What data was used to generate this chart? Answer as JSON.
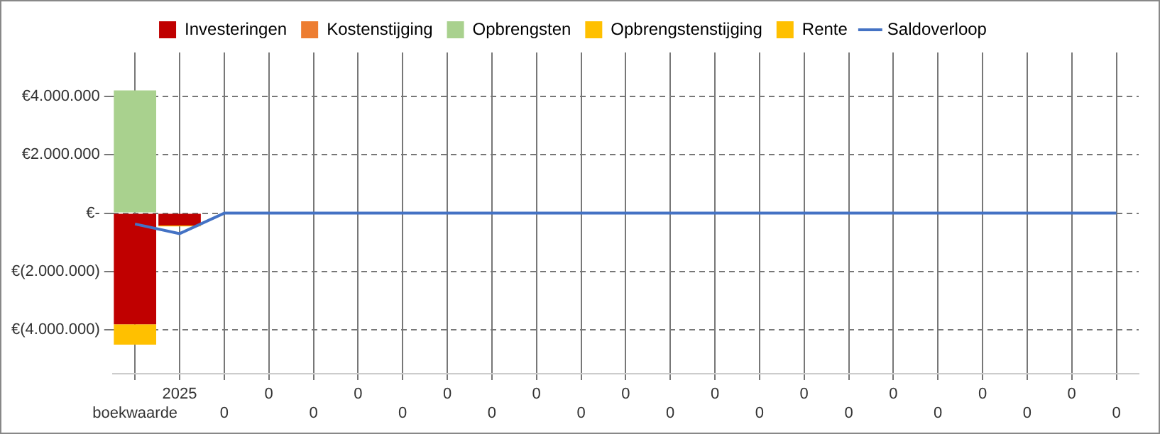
{
  "chart_data": {
    "type": "bar",
    "stacked": true,
    "grid": true,
    "legend": "top",
    "marker": "none",
    "categories": [
      "boekwaarde",
      "2025",
      "0",
      "0",
      "0",
      "0",
      "0",
      "0",
      "0",
      "0",
      "0",
      "0",
      "0",
      "0",
      "0",
      "0",
      "0",
      "0",
      "0",
      "0",
      "0",
      "0",
      "0"
    ],
    "series": [
      {
        "name": "Investeringen",
        "color": "#c00000",
        "values": [
          -3800000,
          -420000,
          0,
          0,
          0,
          0,
          0,
          0,
          0,
          0,
          0,
          0,
          0,
          0,
          0,
          0,
          0,
          0,
          0,
          0,
          0,
          0,
          0
        ]
      },
      {
        "name": "Kostenstijging",
        "color": "#ed7d31",
        "values": [
          0,
          0,
          0,
          0,
          0,
          0,
          0,
          0,
          0,
          0,
          0,
          0,
          0,
          0,
          0,
          0,
          0,
          0,
          0,
          0,
          0,
          0,
          0
        ]
      },
      {
        "name": "Opbrengsten",
        "color": "#a9d18e",
        "values": [
          4200000,
          0,
          0,
          0,
          0,
          0,
          0,
          0,
          0,
          0,
          0,
          0,
          0,
          0,
          0,
          0,
          0,
          0,
          0,
          0,
          0,
          0,
          0
        ]
      },
      {
        "name": "Opbrengstenstijging",
        "color": "#ffc000",
        "values": [
          0,
          0,
          0,
          0,
          0,
          0,
          0,
          0,
          0,
          0,
          0,
          0,
          0,
          0,
          0,
          0,
          0,
          0,
          0,
          0,
          0,
          0,
          0
        ]
      },
      {
        "name": "Rente",
        "color": "#ffc000",
        "values": [
          -700000,
          -30000,
          0,
          0,
          0,
          0,
          0,
          0,
          0,
          0,
          0,
          0,
          0,
          0,
          0,
          0,
          0,
          0,
          0,
          0,
          0,
          0,
          0
        ]
      },
      {
        "name": "Saldoverloop",
        "type": "line",
        "color": "#4472c4",
        "values": [
          -370000,
          -700000,
          0,
          0,
          0,
          0,
          0,
          0,
          0,
          0,
          0,
          0,
          0,
          0,
          0,
          0,
          0,
          0,
          0,
          0,
          0,
          0,
          0
        ]
      }
    ],
    "ylim": [
      -5500000,
      5500000
    ],
    "yticks": [
      {
        "value": -4000000,
        "label": "€(4.000.000)"
      },
      {
        "value": -2000000,
        "label": "€(2.000.000)"
      },
      {
        "value": 0,
        "label": "€-"
      },
      {
        "value": 2000000,
        "label": "€2.000.000"
      },
      {
        "value": 4000000,
        "label": "€4.000.000"
      }
    ]
  }
}
